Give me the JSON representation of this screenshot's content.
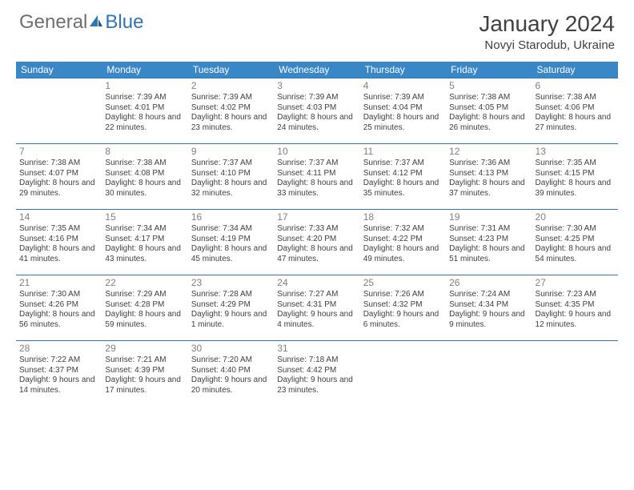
{
  "logo": {
    "general": "General",
    "blue": "Blue"
  },
  "title": "January 2024",
  "location": "Novyi Starodub, Ukraine",
  "colors": {
    "header_bg": "#3a87c7",
    "border": "#2e75b6",
    "text": "#404040",
    "daynum": "#808080",
    "logo_gray": "#6d6e71",
    "logo_blue": "#2e75b6"
  },
  "weekdays": [
    "Sunday",
    "Monday",
    "Tuesday",
    "Wednesday",
    "Thursday",
    "Friday",
    "Saturday"
  ],
  "leading_blanks": 1,
  "days": [
    {
      "n": 1,
      "sunrise": "7:39 AM",
      "sunset": "4:01 PM",
      "daylight": "8 hours and 22 minutes."
    },
    {
      "n": 2,
      "sunrise": "7:39 AM",
      "sunset": "4:02 PM",
      "daylight": "8 hours and 23 minutes."
    },
    {
      "n": 3,
      "sunrise": "7:39 AM",
      "sunset": "4:03 PM",
      "daylight": "8 hours and 24 minutes."
    },
    {
      "n": 4,
      "sunrise": "7:39 AM",
      "sunset": "4:04 PM",
      "daylight": "8 hours and 25 minutes."
    },
    {
      "n": 5,
      "sunrise": "7:38 AM",
      "sunset": "4:05 PM",
      "daylight": "8 hours and 26 minutes."
    },
    {
      "n": 6,
      "sunrise": "7:38 AM",
      "sunset": "4:06 PM",
      "daylight": "8 hours and 27 minutes."
    },
    {
      "n": 7,
      "sunrise": "7:38 AM",
      "sunset": "4:07 PM",
      "daylight": "8 hours and 29 minutes."
    },
    {
      "n": 8,
      "sunrise": "7:38 AM",
      "sunset": "4:08 PM",
      "daylight": "8 hours and 30 minutes."
    },
    {
      "n": 9,
      "sunrise": "7:37 AM",
      "sunset": "4:10 PM",
      "daylight": "8 hours and 32 minutes."
    },
    {
      "n": 10,
      "sunrise": "7:37 AM",
      "sunset": "4:11 PM",
      "daylight": "8 hours and 33 minutes."
    },
    {
      "n": 11,
      "sunrise": "7:37 AM",
      "sunset": "4:12 PM",
      "daylight": "8 hours and 35 minutes."
    },
    {
      "n": 12,
      "sunrise": "7:36 AM",
      "sunset": "4:13 PM",
      "daylight": "8 hours and 37 minutes."
    },
    {
      "n": 13,
      "sunrise": "7:35 AM",
      "sunset": "4:15 PM",
      "daylight": "8 hours and 39 minutes."
    },
    {
      "n": 14,
      "sunrise": "7:35 AM",
      "sunset": "4:16 PM",
      "daylight": "8 hours and 41 minutes."
    },
    {
      "n": 15,
      "sunrise": "7:34 AM",
      "sunset": "4:17 PM",
      "daylight": "8 hours and 43 minutes."
    },
    {
      "n": 16,
      "sunrise": "7:34 AM",
      "sunset": "4:19 PM",
      "daylight": "8 hours and 45 minutes."
    },
    {
      "n": 17,
      "sunrise": "7:33 AM",
      "sunset": "4:20 PM",
      "daylight": "8 hours and 47 minutes."
    },
    {
      "n": 18,
      "sunrise": "7:32 AM",
      "sunset": "4:22 PM",
      "daylight": "8 hours and 49 minutes."
    },
    {
      "n": 19,
      "sunrise": "7:31 AM",
      "sunset": "4:23 PM",
      "daylight": "8 hours and 51 minutes."
    },
    {
      "n": 20,
      "sunrise": "7:30 AM",
      "sunset": "4:25 PM",
      "daylight": "8 hours and 54 minutes."
    },
    {
      "n": 21,
      "sunrise": "7:30 AM",
      "sunset": "4:26 PM",
      "daylight": "8 hours and 56 minutes."
    },
    {
      "n": 22,
      "sunrise": "7:29 AM",
      "sunset": "4:28 PM",
      "daylight": "8 hours and 59 minutes."
    },
    {
      "n": 23,
      "sunrise": "7:28 AM",
      "sunset": "4:29 PM",
      "daylight": "9 hours and 1 minute."
    },
    {
      "n": 24,
      "sunrise": "7:27 AM",
      "sunset": "4:31 PM",
      "daylight": "9 hours and 4 minutes."
    },
    {
      "n": 25,
      "sunrise": "7:26 AM",
      "sunset": "4:32 PM",
      "daylight": "9 hours and 6 minutes."
    },
    {
      "n": 26,
      "sunrise": "7:24 AM",
      "sunset": "4:34 PM",
      "daylight": "9 hours and 9 minutes."
    },
    {
      "n": 27,
      "sunrise": "7:23 AM",
      "sunset": "4:35 PM",
      "daylight": "9 hours and 12 minutes."
    },
    {
      "n": 28,
      "sunrise": "7:22 AM",
      "sunset": "4:37 PM",
      "daylight": "9 hours and 14 minutes."
    },
    {
      "n": 29,
      "sunrise": "7:21 AM",
      "sunset": "4:39 PM",
      "daylight": "9 hours and 17 minutes."
    },
    {
      "n": 30,
      "sunrise": "7:20 AM",
      "sunset": "4:40 PM",
      "daylight": "9 hours and 20 minutes."
    },
    {
      "n": 31,
      "sunrise": "7:18 AM",
      "sunset": "4:42 PM",
      "daylight": "9 hours and 23 minutes."
    }
  ]
}
